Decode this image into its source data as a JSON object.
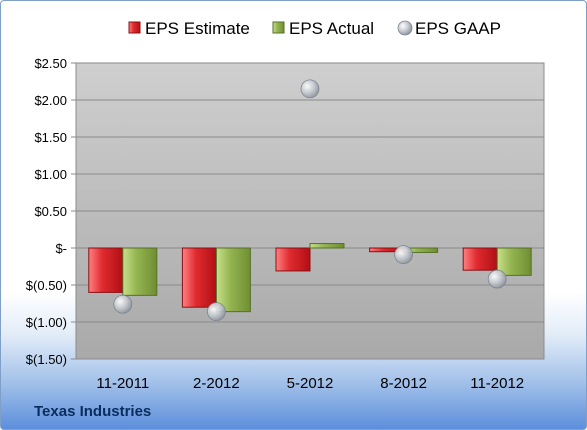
{
  "chart_data": {
    "type": "bar",
    "categories": [
      "11-2011",
      "2-2012",
      "5-2012",
      "8-2012",
      "11-2012"
    ],
    "series": [
      {
        "name": "EPS Estimate",
        "kind": "bar",
        "color": "#d8262b",
        "values": [
          -0.6,
          -0.8,
          -0.31,
          -0.05,
          -0.3
        ]
      },
      {
        "name": "EPS Actual",
        "kind": "bar",
        "color": "#8fb04a",
        "values": [
          -0.64,
          -0.86,
          0.06,
          -0.06,
          -0.37
        ]
      },
      {
        "name": "EPS GAAP",
        "kind": "marker",
        "color": "#b9bec6",
        "values": [
          -0.76,
          -0.86,
          2.15,
          -0.09,
          -0.42
        ]
      }
    ],
    "y_ticks": [
      2.5,
      2.0,
      1.5,
      1.0,
      0.5,
      0,
      -0.5,
      -1.0,
      -1.5
    ],
    "y_tick_labels": [
      "$2.50",
      "$2.00",
      "$1.50",
      "$1.00",
      "$0.50",
      "$-",
      "$(0.50)",
      "$(1.00)",
      "$(1.50)"
    ],
    "ylim": [
      -1.5,
      2.5
    ],
    "grid": true,
    "legend_position": "top",
    "plot_background": "#bfbfbf"
  },
  "footer": {
    "company": "Texas Industries"
  }
}
